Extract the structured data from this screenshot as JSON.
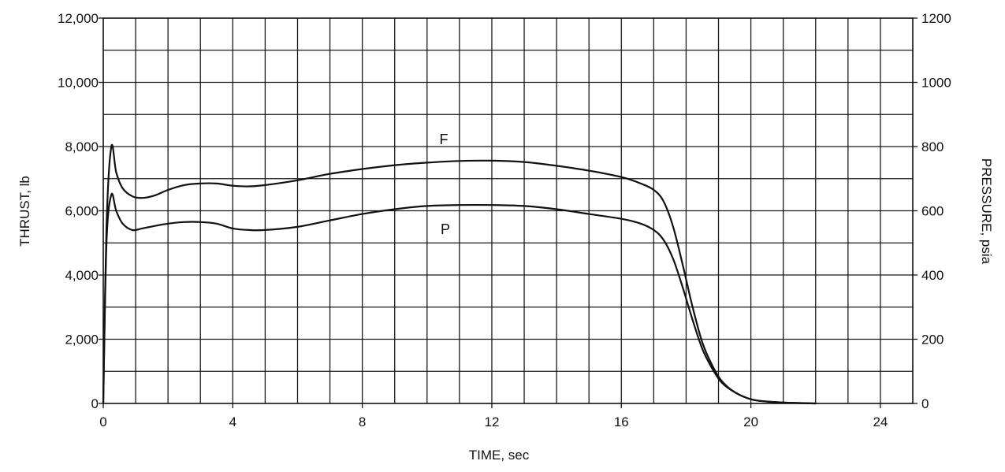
{
  "chart_data": {
    "type": "line",
    "title": "",
    "xlabel": "TIME, sec",
    "ylabel": "THRUST, lb",
    "y2label": "PRESSURE, psia",
    "xlim": [
      0,
      25
    ],
    "ylim": [
      0,
      12000
    ],
    "y2lim": [
      0,
      1200
    ],
    "x_ticks": [
      0,
      4,
      8,
      12,
      16,
      20,
      24
    ],
    "x_tick_labels": [
      "0",
      "4",
      "8",
      "12",
      "16",
      "20",
      "24"
    ],
    "y_ticks": [
      0,
      2000,
      4000,
      6000,
      8000,
      10000,
      12000
    ],
    "y_tick_labels": [
      "0",
      "2,000",
      "4,000",
      "6,000",
      "8,000",
      "10,000",
      "12,000"
    ],
    "y2_ticks": [
      0,
      200,
      400,
      600,
      800,
      1000,
      1200
    ],
    "y2_tick_labels": [
      "0",
      "200",
      "400",
      "600",
      "800",
      "1000",
      "1200"
    ],
    "grid": true,
    "series": [
      {
        "name": "F",
        "axis": "left",
        "x": [
          0,
          0.1,
          0.25,
          0.4,
          0.6,
          0.9,
          1.2,
          1.6,
          2.0,
          2.5,
          3.0,
          3.5,
          4.0,
          4.5,
          5.0,
          6.0,
          7.0,
          8.0,
          9.0,
          10.0,
          11.0,
          12.0,
          13.0,
          14.0,
          15.0,
          16.0,
          16.6,
          17.0,
          17.3,
          17.6,
          17.9,
          18.2,
          18.5,
          18.8,
          19.1,
          19.5,
          20.0,
          20.5,
          21.0,
          21.5,
          22.0
        ],
        "y": [
          0,
          5500,
          8000,
          7200,
          6700,
          6450,
          6400,
          6480,
          6650,
          6800,
          6850,
          6850,
          6780,
          6760,
          6800,
          6950,
          7150,
          7300,
          7420,
          7500,
          7550,
          7560,
          7520,
          7400,
          7250,
          7050,
          6850,
          6650,
          6300,
          5500,
          4300,
          3000,
          1900,
          1200,
          700,
          350,
          130,
          60,
          30,
          15,
          0
        ]
      },
      {
        "name": "P",
        "axis": "right",
        "x": [
          0,
          0.1,
          0.25,
          0.4,
          0.6,
          0.9,
          1.2,
          1.6,
          2.0,
          2.5,
          3.0,
          3.5,
          4.0,
          4.5,
          5.0,
          6.0,
          7.0,
          8.0,
          9.0,
          10.0,
          11.0,
          12.0,
          13.0,
          14.0,
          15.0,
          16.0,
          16.6,
          17.0,
          17.3,
          17.6,
          17.9,
          18.2,
          18.5,
          18.8,
          19.1,
          19.5,
          20.0,
          20.5,
          21.0,
          21.5,
          22.0
        ],
        "y": [
          0,
          500,
          650,
          600,
          560,
          540,
          545,
          553,
          560,
          565,
          565,
          560,
          545,
          540,
          540,
          550,
          570,
          590,
          605,
          615,
          618,
          618,
          615,
          605,
          590,
          575,
          560,
          540,
          510,
          450,
          360,
          260,
          170,
          110,
          65,
          35,
          13,
          6,
          3,
          1,
          0
        ]
      }
    ]
  }
}
